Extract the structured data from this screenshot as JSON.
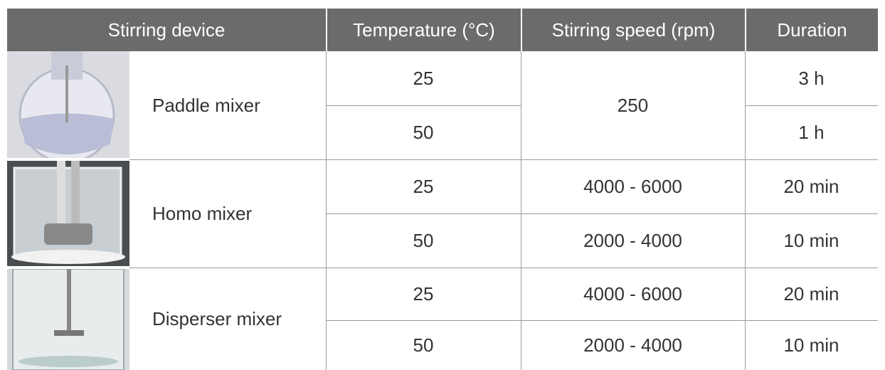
{
  "table": {
    "header": [
      "Stirring device",
      "Temperature (°C)",
      "Stirring speed (rpm)",
      "Duration"
    ],
    "groups": [
      {
        "device": "Paddle mixer",
        "speed": 250,
        "rows": [
          {
            "temperature": 25,
            "duration": "3 h"
          },
          {
            "temperature": 50,
            "duration": "1 h"
          }
        ]
      },
      {
        "device": "Homo mixer",
        "rows": [
          {
            "temperature": 25,
            "speed": "4000 - 6000",
            "duration": "20 min"
          },
          {
            "temperature": 50,
            "speed": "2000 - 4000",
            "duration": "10 min"
          }
        ]
      },
      {
        "device": "Disperser mixer",
        "rows": [
          {
            "temperature": 25,
            "speed": "4000 - 6000",
            "duration": "20 min"
          },
          {
            "temperature": 50,
            "speed": "2000 - 4000",
            "duration": "10 min"
          }
        ]
      }
    ]
  }
}
